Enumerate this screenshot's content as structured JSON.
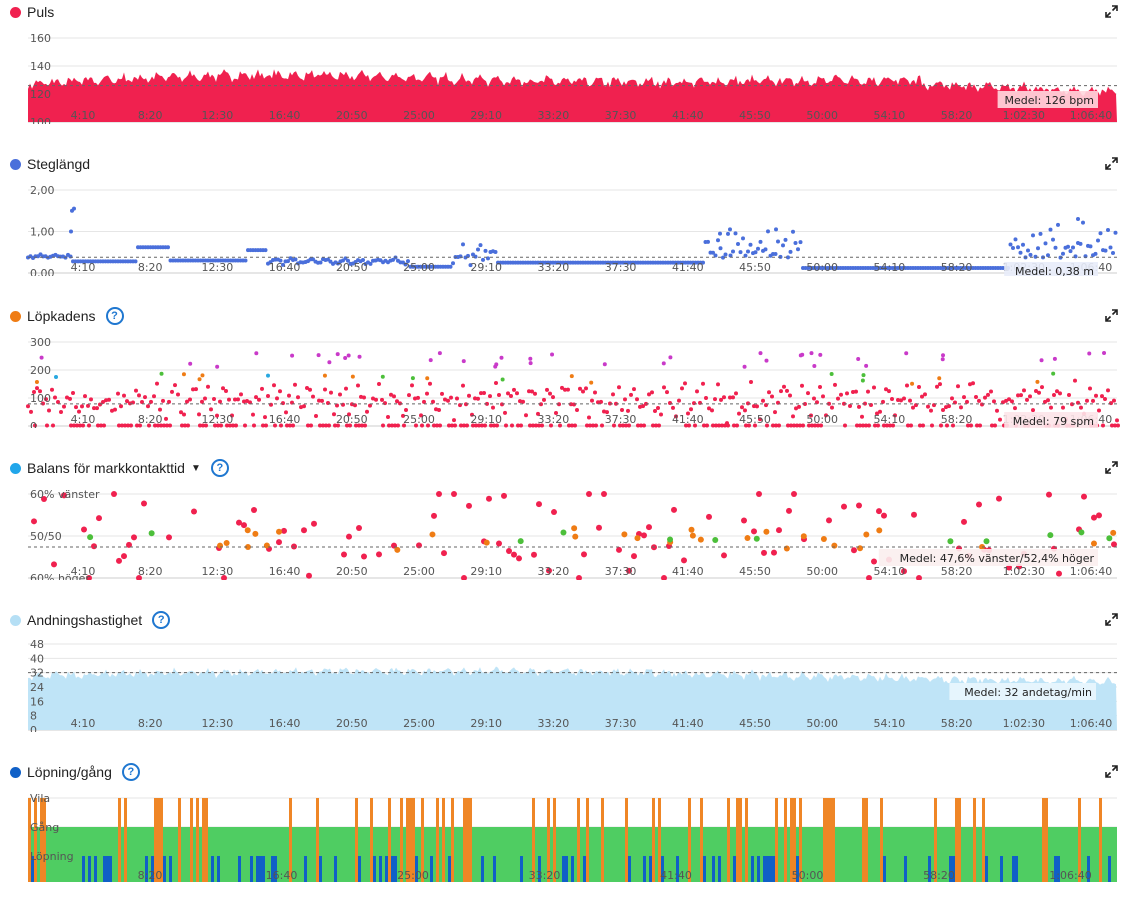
{
  "colors": {
    "puls": "#f0214f",
    "steg": "#4a6fdb",
    "kad_red": "#f0214f",
    "kad_purple": "#c93ac9",
    "kad_orange": "#ef7c14",
    "kad_green": "#4cbf3a",
    "kad_blue": "#29a8e0",
    "balans_blue": "#21a6ea",
    "andning": "#bfe4f7",
    "andning_dot": "#b5dff5",
    "lopning": "#1060c7",
    "walk": "#4fcd62",
    "rest": "#ef8626",
    "grid": "#e6e6e6"
  },
  "x_ticks": [
    "4:10",
    "8:20",
    "12:30",
    "16:40",
    "20:50",
    "25:00",
    "29:10",
    "33:20",
    "37:30",
    "41:40",
    "45:50",
    "50:00",
    "54:10",
    "58:20",
    "1:02:30",
    "1:06:40"
  ],
  "x_ticks_last": [
    "8:20",
    "16:40",
    "25:00",
    "33:20",
    "41:40",
    "50:00",
    "58:20",
    "1:06:40"
  ],
  "chart_data": [
    {
      "type": "area",
      "title": "Puls",
      "y_ticks": [
        "160",
        "140",
        "120",
        "100"
      ],
      "ylim": [
        100,
        160
      ],
      "average": 126,
      "average_label": "Medel: 126 bpm"
    },
    {
      "type": "scatter",
      "title": "Steglängd",
      "y_ticks": [
        "2,00",
        "1,00",
        "0,00"
      ],
      "ylim": [
        0,
        2
      ],
      "average": 0.38,
      "average_label": "Medel: 0,38 m"
    },
    {
      "type": "scatter",
      "title": "Löpkadens",
      "y_ticks": [
        "300",
        "200",
        "100",
        "0"
      ],
      "ylim": [
        0,
        300
      ],
      "average": 79,
      "average_label": "Medel: 79 spm"
    },
    {
      "type": "scatter",
      "title": "Balans för markkontakttid",
      "y_ticks": [
        "60% vänster",
        "50/50",
        "60% höger"
      ],
      "average_label": "Medel: 47,6% vänster/52,4% höger"
    },
    {
      "type": "area",
      "title": "Andningshastighet",
      "y_ticks": [
        "48",
        "40",
        "32",
        "24",
        "16",
        "8",
        "0"
      ],
      "ylim": [
        0,
        48
      ],
      "average": 32,
      "average_label": "Medel: 32 andetag/min"
    },
    {
      "type": "bar",
      "title": "Löpning/gång",
      "categories": [
        "Vila",
        "Gång",
        "Löpning"
      ]
    }
  ],
  "sections": [
    {
      "title": "Puls",
      "dot": "#f0214f"
    },
    {
      "title": "Steglängd",
      "dot": "#4a6fdb"
    },
    {
      "title": "Löpkadens",
      "dot": "#ef7c14",
      "help": "?"
    },
    {
      "title": "Balans för markkontakttid",
      "dot": "#21a6ea",
      "help": "?",
      "caret": "▼"
    },
    {
      "title": "Andningshastighet",
      "dot": "#b5dff5",
      "help": "?"
    },
    {
      "title": "Löpning/gång",
      "dot": "#1060c7",
      "help": "?"
    }
  ]
}
